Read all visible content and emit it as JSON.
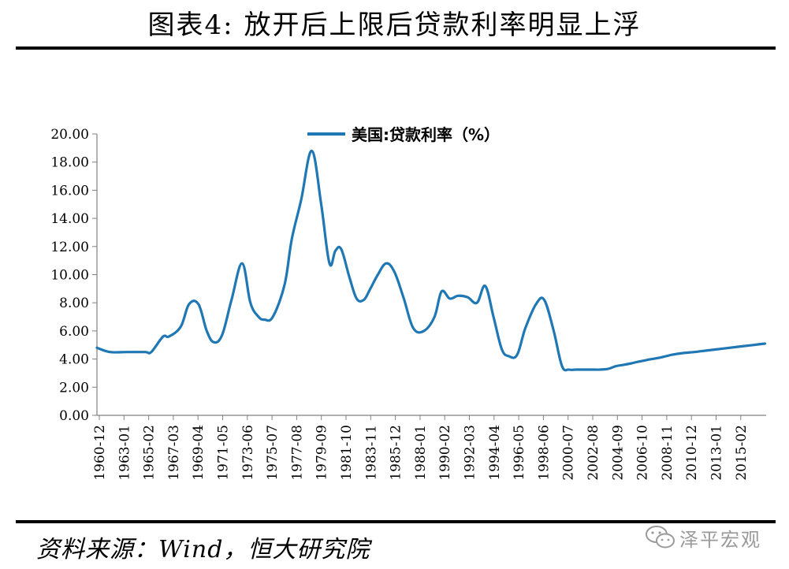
{
  "header": {
    "title": "图表4:  放开后上限后贷款利率明显上浮"
  },
  "footer": {
    "source": "资料来源：Wind，恒大研究院",
    "watermark_text": "泽平宏观",
    "watermark_icon": "wechat-icon"
  },
  "colors": {
    "series": "#1f77b4",
    "axis": "#808080",
    "text": "#000000"
  },
  "chart_data": {
    "type": "line",
    "title": "",
    "xlabel": "",
    "ylabel": "",
    "ylim": [
      0,
      20
    ],
    "yticks": [
      "0.00",
      "2.00",
      "4.00",
      "6.00",
      "8.00",
      "10.00",
      "12.00",
      "14.00",
      "16.00",
      "18.00",
      "20.00"
    ],
    "xticks": [
      "1960-12",
      "1963-01",
      "1965-02",
      "1967-03",
      "1969-04",
      "1971-05",
      "1973-06",
      "1975-07",
      "1977-08",
      "1979-09",
      "1981-10",
      "1983-11",
      "1985-12",
      "1988-01",
      "1990-02",
      "1992-03",
      "1994-04",
      "1996-05",
      "1998-06",
      "2000-07",
      "2002-08",
      "2004-09",
      "2006-10",
      "2008-11",
      "2010-12",
      "2013-01",
      "2015-02"
    ],
    "grid": false,
    "legend_position": "top",
    "series": [
      {
        "name": "美国:贷款利率（%）",
        "x": [
          1960.9,
          1962.0,
          1963.5,
          1965.0,
          1965.5,
          1966.5,
          1967.0,
          1968.0,
          1968.7,
          1969.5,
          1970.2,
          1970.8,
          1971.5,
          1972.3,
          1973.2,
          1973.9,
          1974.6,
          1975.1,
          1975.8,
          1976.8,
          1977.4,
          1978.2,
          1979.1,
          1979.9,
          1980.6,
          1981.1,
          1981.6,
          1982.3,
          1982.9,
          1983.5,
          1984.0,
          1984.7,
          1985.4,
          1986.1,
          1986.9,
          1987.7,
          1988.6,
          1989.5,
          1990.1,
          1990.8,
          1991.5,
          1992.3,
          1993.1,
          1993.8,
          1994.5,
          1995.2,
          1995.8,
          1996.5,
          1997.2,
          1998.1,
          1998.8,
          1999.6,
          2000.3,
          2000.9,
          2001.5,
          2002.1,
          2002.8,
          2003.5,
          2004.2,
          2004.9,
          2005.6,
          2006.2,
          2006.7,
          2007.3,
          2007.9,
          2008.6,
          2009.1,
          2009.6,
          2010.3,
          2011.5,
          2012.5,
          2013.5,
          2014.5,
          2015.5,
          2016.5,
          2017.5
        ],
        "values": [
          4.8,
          4.5,
          4.5,
          4.5,
          4.5,
          5.6,
          5.6,
          6.3,
          7.9,
          7.9,
          6.0,
          5.2,
          5.7,
          8.2,
          10.8,
          8.0,
          7.0,
          6.8,
          7.0,
          9.3,
          12.5,
          15.3,
          18.8,
          15.0,
          10.8,
          11.7,
          11.8,
          9.8,
          8.3,
          8.2,
          8.9,
          10.0,
          10.8,
          10.2,
          8.3,
          6.2,
          6.0,
          7.0,
          8.8,
          8.3,
          8.5,
          8.4,
          8.0,
          9.2,
          7.0,
          4.7,
          4.2,
          4.3,
          6.2,
          7.9,
          8.2,
          6.0,
          3.5,
          3.25,
          3.25,
          3.25,
          3.25,
          3.25,
          3.3,
          3.5,
          3.6,
          3.7,
          3.8,
          3.9,
          4.0,
          4.1,
          4.2,
          4.3,
          4.4,
          4.5,
          4.6,
          4.7,
          4.8,
          4.9,
          5.0,
          5.1
        ]
      }
    ]
  }
}
